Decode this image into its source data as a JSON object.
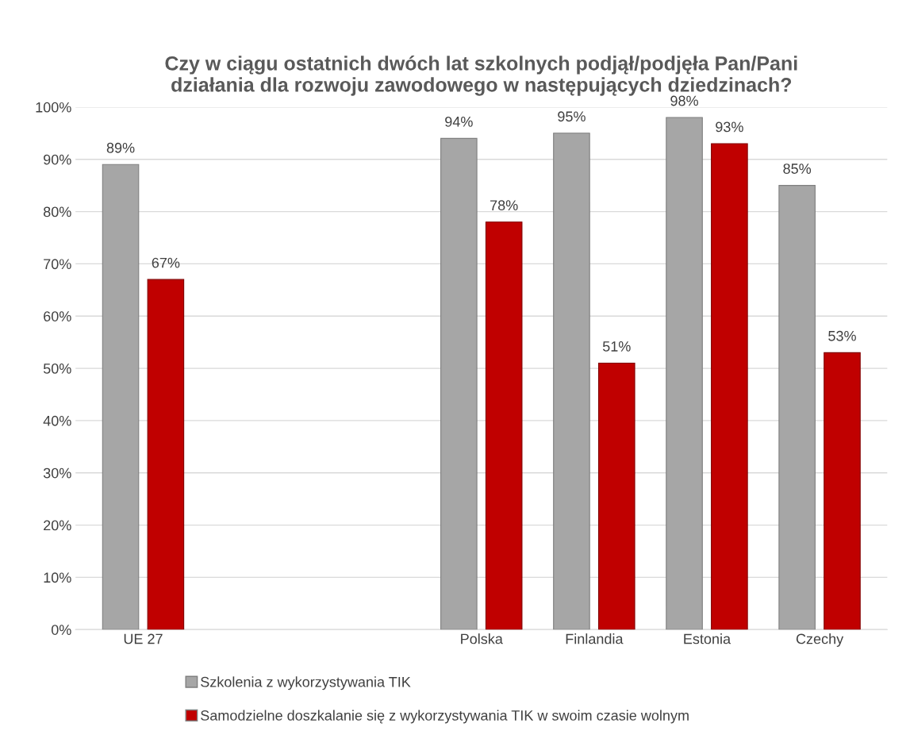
{
  "chart_data": {
    "type": "bar",
    "title": "Czy w ciągu ostatnich dwóch lat szkolnych podjął/podjęła Pan/Pani\ndziałania dla rozwoju zawodowego w następujących dziedzinach?",
    "categories": [
      "UE 27",
      null,
      null,
      "Polska",
      "Finlandia",
      "Estonia",
      "Czechy"
    ],
    "series": [
      {
        "name": "Szkolenia z wykorzystywania TIK",
        "color": "#a6a6a6",
        "values": [
          89,
          null,
          null,
          94,
          95,
          98,
          85
        ],
        "value_labels": [
          "89%",
          null,
          null,
          "94%",
          "95%",
          "98%",
          "85%"
        ]
      },
      {
        "name": "Samodzielne doszkalanie się z wykorzystywania TIK w swoim czasie wolnym",
        "color": "#c00000",
        "values": [
          67,
          null,
          null,
          78,
          51,
          93,
          53
        ],
        "value_labels": [
          "67%",
          null,
          null,
          "78%",
          "51%",
          "93%",
          "53%"
        ]
      }
    ],
    "ylim": [
      0,
      100
    ],
    "yticks": [
      {
        "value": 0,
        "label": "0%"
      },
      {
        "value": 10,
        "label": "10%"
      },
      {
        "value": 20,
        "label": "20%"
      },
      {
        "value": 30,
        "label": "30%"
      },
      {
        "value": 40,
        "label": "40%"
      },
      {
        "value": 50,
        "label": "50%"
      },
      {
        "value": 60,
        "label": "60%"
      },
      {
        "value": 70,
        "label": "70%"
      },
      {
        "value": 80,
        "label": "80%"
      },
      {
        "value": 90,
        "label": "90%"
      },
      {
        "value": 100,
        "label": "100%"
      }
    ],
    "grid": "y",
    "legend": "bottom"
  }
}
